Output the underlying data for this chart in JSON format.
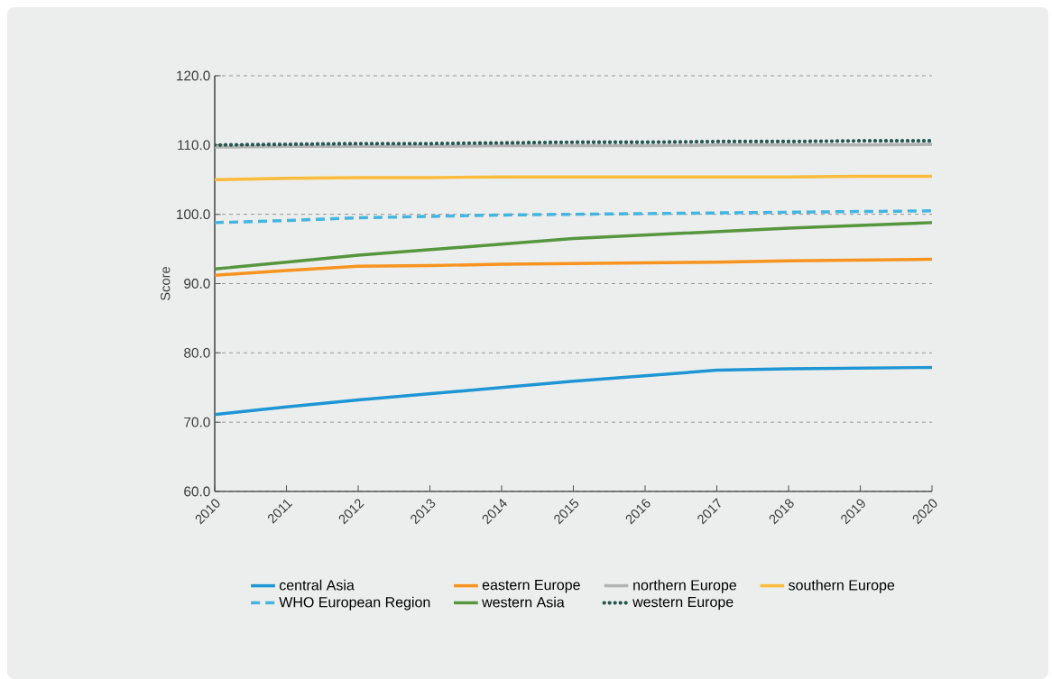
{
  "chart_data": {
    "type": "line",
    "ylabel": "Score",
    "x": [
      2010,
      2011,
      2012,
      2013,
      2014,
      2015,
      2016,
      2017,
      2018,
      2019,
      2020
    ],
    "xlim": [
      2010,
      2020
    ],
    "xticks": [
      2010,
      2011,
      2012,
      2013,
      2014,
      2015,
      2016,
      2017,
      2018,
      2019,
      2020
    ],
    "ylim": [
      60,
      120
    ],
    "yticks": [
      {
        "value": 60,
        "label": "60.0"
      },
      {
        "value": 70,
        "label": "70.0"
      },
      {
        "value": 80,
        "label": "80.0"
      },
      {
        "value": 90,
        "label": "90.0"
      },
      {
        "value": 100,
        "label": "100.0"
      },
      {
        "value": 110,
        "label": "110.0"
      },
      {
        "value": 120,
        "label": "120.0"
      }
    ],
    "grid": "y",
    "legend": "bottom",
    "series": [
      {
        "name": "central Asia",
        "color": "#1e96d4",
        "line_style": "solid",
        "values": [
          71.1,
          72.2,
          73.2,
          74.1,
          75.0,
          75.9,
          76.7,
          77.5,
          77.7,
          77.8,
          77.9
        ]
      },
      {
        "name": "eastern Europe",
        "color": "#f7931e",
        "line_style": "solid",
        "values": [
          91.2,
          91.9,
          92.5,
          92.6,
          92.8,
          92.9,
          93.0,
          93.1,
          93.3,
          93.4,
          93.5
        ]
      },
      {
        "name": "northern Europe",
        "color": "#b3b3b3",
        "line_style": "solid",
        "values": [
          109.7,
          109.8,
          109.8,
          109.8,
          109.9,
          109.9,
          109.9,
          110.0,
          110.0,
          110.0,
          110.1
        ]
      },
      {
        "name": "southern Europe",
        "color": "#fbbb3b",
        "line_style": "solid",
        "values": [
          105.0,
          105.2,
          105.3,
          105.3,
          105.4,
          105.4,
          105.4,
          105.4,
          105.4,
          105.5,
          105.5
        ]
      },
      {
        "name": "WHO European Region",
        "color": "#45b5e0",
        "line_style": "dashed",
        "values": [
          98.8,
          99.1,
          99.5,
          99.7,
          99.9,
          100.0,
          100.1,
          100.2,
          100.3,
          100.4,
          100.5
        ]
      },
      {
        "name": "western Asia",
        "color": "#55963e",
        "line_style": "solid",
        "values": [
          92.1,
          93.1,
          94.1,
          94.9,
          95.7,
          96.5,
          97.0,
          97.5,
          98.0,
          98.4,
          98.8
        ]
      },
      {
        "name": "western Europe",
        "color": "#225750",
        "line_style": "dotted",
        "values": [
          110.0,
          110.1,
          110.2,
          110.2,
          110.3,
          110.4,
          110.4,
          110.5,
          110.5,
          110.6,
          110.6
        ]
      }
    ]
  }
}
